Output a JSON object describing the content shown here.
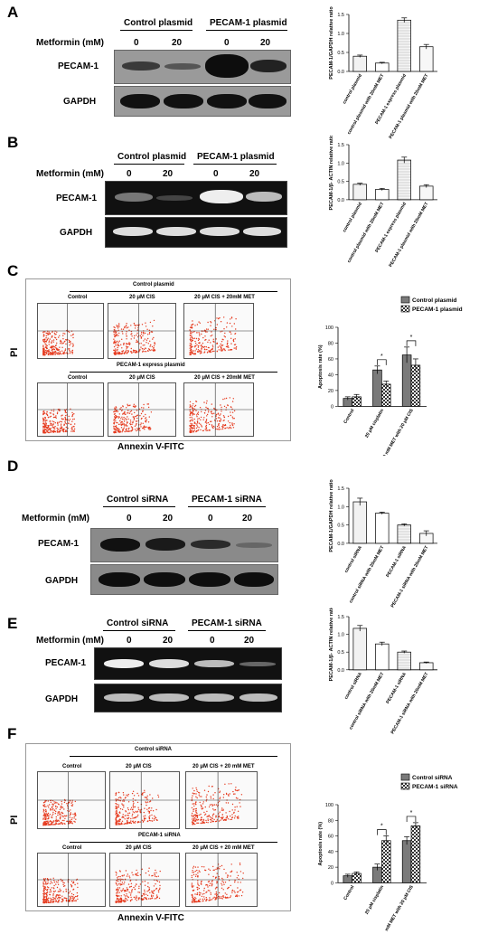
{
  "panels": {
    "A": {
      "letter": "A",
      "header_left": "Control plasmid",
      "header_right": "PECAM-1 plasmid",
      "treat_label": "Metformin (mM)",
      "doses": [
        "0",
        "20",
        "0",
        "20"
      ],
      "rows": [
        "PECAM-1",
        "GAPDH"
      ]
    },
    "B": {
      "letter": "B",
      "header_left": "Control plasmid",
      "header_right": "PECAM-1 plasmid",
      "treat_label": "Metformin (mM)",
      "doses": [
        "0",
        "20",
        "0",
        "20"
      ],
      "rows": [
        "PECAM-1",
        "GAPDH"
      ]
    },
    "C": {
      "letter": "C",
      "group_top": "Control plasmid",
      "group_bottom": "PECAM-1 express plasmid",
      "plots": [
        "Control",
        "20 μM CIS",
        "20 μM CIS + 20mM MET"
      ],
      "yaxis": "PI",
      "xaxis": "Annexin V-FITC"
    },
    "D": {
      "letter": "D",
      "header_left": "Control siRNA",
      "header_right": "PECAM-1 siRNA",
      "treat_label": "Metformin (mM)",
      "doses": [
        "0",
        "20",
        "0",
        "20"
      ],
      "rows": [
        "PECAM-1",
        "GAPDH"
      ]
    },
    "E": {
      "letter": "E",
      "header_left": "Control siRNA",
      "header_right": "PECAM-1 siRNA",
      "treat_label": "Metformin (mM)",
      "doses": [
        "0",
        "20",
        "0",
        "20"
      ],
      "rows": [
        "PECAM-1",
        "GAPDH"
      ]
    },
    "F": {
      "letter": "F",
      "group_top": "Control siRNA",
      "group_bottom": "PECAM-1 siRNA",
      "plots": [
        "Control",
        "20 μM CIS",
        "20 μM CIS + 20 mM MET"
      ],
      "yaxis": "PI",
      "xaxis": "Annexin V-FITC"
    }
  },
  "chart_data": [
    {
      "id": "A",
      "type": "bar",
      "ylabel": "PECAM-1/GAPDH relative ratio",
      "ylim": [
        0,
        1.5
      ],
      "yticks": [
        "0.0",
        "0.5",
        "1.0",
        "1.5"
      ],
      "categories": [
        "control plasmid",
        "control plasmid with 20mM MET",
        "PECAM-1 express plasmid",
        "PECAM-1 plasmid with 20mM MET"
      ],
      "values": [
        0.4,
        0.22,
        1.35,
        0.65
      ],
      "errors": [
        0.03,
        0.02,
        0.06,
        0.06
      ]
    },
    {
      "id": "B",
      "type": "bar",
      "ylabel": "PECAM-1/β- ACTIN relative ratio",
      "ylim": [
        0,
        1.5
      ],
      "yticks": [
        "0.0",
        "0.5",
        "1.0",
        "1.5"
      ],
      "categories": [
        "control plasmid",
        "control plasmid with 20mM MET",
        "PECAM-1 express plasmid",
        "PECAM-1 plasmid with 20mM MET"
      ],
      "values": [
        0.42,
        0.28,
        1.08,
        0.37
      ],
      "errors": [
        0.03,
        0.03,
        0.08,
        0.04
      ]
    },
    {
      "id": "C",
      "type": "bar",
      "ylabel": "Apoptosis rate (%)",
      "ylim": [
        0,
        100
      ],
      "yticks": [
        "0",
        "20",
        "40",
        "60",
        "80",
        "100"
      ],
      "categories": [
        "Control",
        "20 μM cisplatin",
        "20 mM MET with 20 μM CIS"
      ],
      "series": [
        {
          "name": "Control plasmid",
          "values": [
            10,
            46,
            65
          ],
          "errors": [
            2,
            5,
            10
          ]
        },
        {
          "name": "PECAM-1 plasmid",
          "values": [
            12,
            28,
            52
          ],
          "errors": [
            3,
            4,
            8
          ]
        }
      ],
      "annotations": [
        "*",
        "*"
      ],
      "legend": "top-right"
    },
    {
      "id": "D",
      "type": "bar",
      "ylabel": "PECAM-1/GAPDH relative ratio",
      "ylim": [
        0,
        1.5
      ],
      "yticks": [
        "0.0",
        "0.5",
        "1.0",
        "1.5"
      ],
      "categories": [
        "control siRNA",
        "control siRNA with 20mM MET",
        "PECAM-1 siRNA",
        "PECAM-1 siRNA with 20mM MET"
      ],
      "values": [
        1.13,
        0.82,
        0.5,
        0.27
      ],
      "errors": [
        0.1,
        0.03,
        0.03,
        0.07
      ]
    },
    {
      "id": "E",
      "type": "bar",
      "ylabel": "PECAM-1/β- ACTIN relative ratio",
      "ylim": [
        0,
        1.5
      ],
      "yticks": [
        "0.0",
        "0.5",
        "1.0",
        "1.5"
      ],
      "categories": [
        "control siRNA",
        "control siRNA with 20mM MET",
        "PECAM-1 siRNA",
        "PECAM-1 siRNA with 20mM MET"
      ],
      "values": [
        1.17,
        0.73,
        0.5,
        0.2
      ],
      "errors": [
        0.08,
        0.05,
        0.03,
        0.02
      ]
    },
    {
      "id": "F",
      "type": "bar",
      "ylabel": "Apoptosis rate (%)",
      "ylim": [
        0,
        100
      ],
      "yticks": [
        "0",
        "20",
        "40",
        "60",
        "80",
        "100"
      ],
      "categories": [
        "Control",
        "20 μM cisplatin",
        "20 mM MET with 20 μM CIS"
      ],
      "series": [
        {
          "name": "Control siRNA",
          "values": [
            9,
            20,
            54
          ],
          "errors": [
            2,
            4,
            5
          ]
        },
        {
          "name": "PECAM-1 siRNA",
          "values": [
            12,
            54,
            73
          ],
          "errors": [
            2,
            6,
            4
          ]
        }
      ],
      "annotations": [
        "*",
        "*"
      ],
      "legend": "top-right"
    }
  ]
}
